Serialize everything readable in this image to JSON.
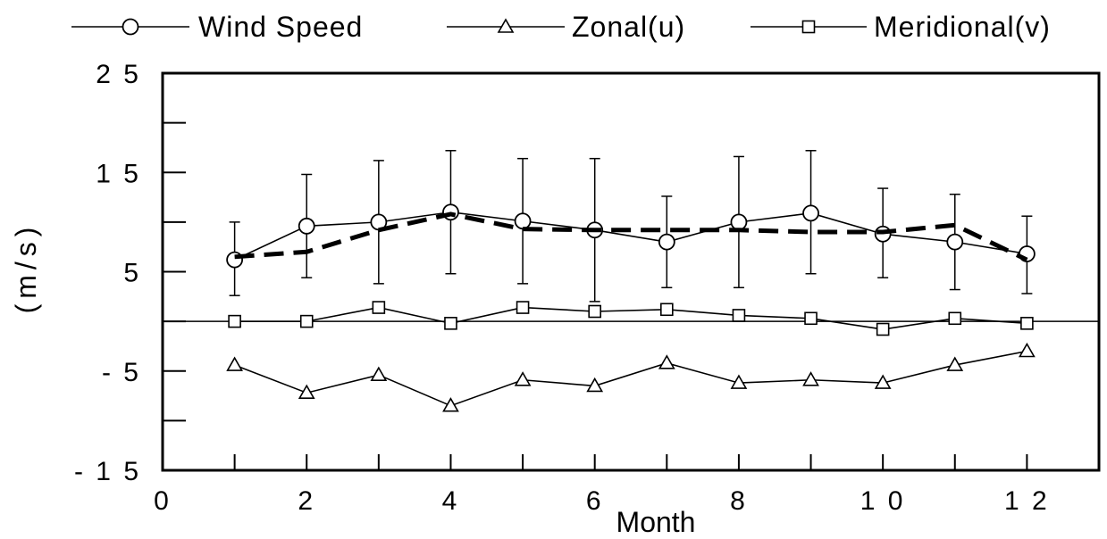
{
  "chart_data": {
    "type": "line",
    "title": "",
    "xlabel": "Month",
    "ylabel": "(m/s)",
    "xlim": [
      0,
      13
    ],
    "ylim": [
      -15,
      25
    ],
    "x_ticks": [
      0,
      2,
      4,
      6,
      8,
      10,
      12
    ],
    "x_tick_labels": [
      "0",
      "2",
      "4",
      "6",
      "8",
      "1 0",
      "1 2"
    ],
    "y_ticks": [
      25,
      15,
      5,
      -5,
      -15
    ],
    "y_tick_labels": [
      "2 5",
      "1 5",
      "5",
      "- 5",
      "- 1 5"
    ],
    "y_minor_ticks": [
      20,
      10,
      0,
      -10
    ],
    "grid": false,
    "legend_position": "top",
    "x": [
      1,
      2,
      3,
      4,
      5,
      6,
      7,
      8,
      9,
      10,
      11,
      12
    ],
    "series": [
      {
        "name": "Wind Speed",
        "marker": "circle",
        "values": [
          6.2,
          9.6,
          10.0,
          11.0,
          10.1,
          9.2,
          8.0,
          10.0,
          10.9,
          8.8,
          8.0,
          6.8
        ],
        "error_low": [
          2.6,
          4.4,
          3.8,
          4.8,
          3.8,
          2.0,
          3.4,
          3.4,
          4.8,
          4.4,
          3.2,
          2.8
        ],
        "error_high": [
          10.0,
          14.8,
          16.2,
          17.2,
          16.4,
          16.4,
          12.6,
          16.6,
          17.2,
          13.4,
          12.8,
          10.6
        ]
      },
      {
        "name": "Zonal(u)",
        "marker": "triangle",
        "values": [
          -4.4,
          -7.2,
          -5.4,
          -8.5,
          -5.9,
          -6.5,
          -4.2,
          -6.2,
          -5.9,
          -6.2,
          -4.4,
          -3.0
        ]
      },
      {
        "name": "Meridional(v)",
        "marker": "square",
        "values": [
          0.0,
          0.0,
          1.4,
          -0.2,
          1.4,
          1.0,
          1.2,
          0.6,
          0.3,
          -0.8,
          0.3,
          -0.2
        ]
      },
      {
        "name": "",
        "style": "dashed-thick",
        "values": [
          6.5,
          7.0,
          9.2,
          10.8,
          9.3,
          9.2,
          9.2,
          9.2,
          9.0,
          9.0,
          9.7,
          6.2
        ]
      }
    ]
  },
  "colors": {
    "line": "#000000",
    "zero_line": "#000000",
    "background": "#ffffff"
  }
}
